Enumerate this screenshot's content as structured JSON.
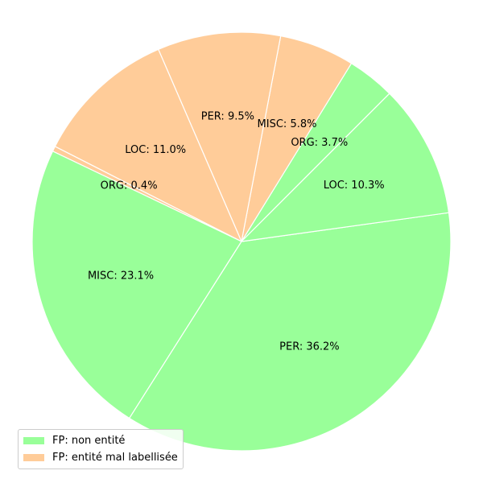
{
  "chart_data": {
    "type": "pie",
    "title": "",
    "start_angle_deg": 45,
    "direction": "counterclockwise",
    "series": [
      {
        "name": "FP: non entité",
        "color": "#99ff99"
      },
      {
        "name": "FP: entité mal labellisée",
        "color": "#ffcc99"
      }
    ],
    "slices": [
      {
        "label": "ORG",
        "value": 3.7,
        "series": 0,
        "text": "ORG: 3.7%"
      },
      {
        "label": "MISC",
        "value": 5.8,
        "series": 1,
        "text": "MISC: 5.8%"
      },
      {
        "label": "PER",
        "value": 9.5,
        "series": 1,
        "text": "PER: 9.5%"
      },
      {
        "label": "LOC",
        "value": 11.0,
        "series": 1,
        "text": "LOC: 11.0%"
      },
      {
        "label": "ORG",
        "value": 0.4,
        "series": 1,
        "text": "ORG: 0.4%"
      },
      {
        "label": "MISC",
        "value": 23.1,
        "series": 0,
        "text": "MISC: 23.1%"
      },
      {
        "label": "PER",
        "value": 36.2,
        "series": 0,
        "text": "PER: 36.2%"
      },
      {
        "label": "LOC",
        "value": 10.3,
        "series": 0,
        "text": "LOC: 10.3%"
      }
    ],
    "legend": {
      "placement": "lower-left"
    }
  }
}
